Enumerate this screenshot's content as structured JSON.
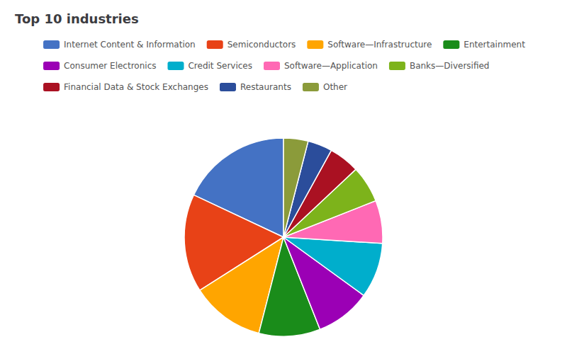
{
  "chart_data": {
    "type": "pie",
    "title": "Top 10 industries",
    "categories": [
      "Internet Content & Information",
      "Semiconductors",
      "Software—Infrastructure",
      "Entertainment",
      "Consumer Electronics",
      "Credit Services",
      "Software—Application",
      "Banks—Diversified",
      "Financial Data & Stock Exchanges",
      "Restaurants",
      "Other"
    ],
    "values": [
      18,
      16,
      12,
      10,
      9,
      9,
      7,
      6,
      5,
      4,
      4
    ],
    "colors": [
      "#4472C4",
      "#E84217",
      "#FFA500",
      "#1A8C1A",
      "#9B00B5",
      "#00AECC",
      "#FF69B4",
      "#7DB31B",
      "#AA1122",
      "#2B4D9B",
      "#8B9B3A"
    ],
    "legend": "top"
  }
}
